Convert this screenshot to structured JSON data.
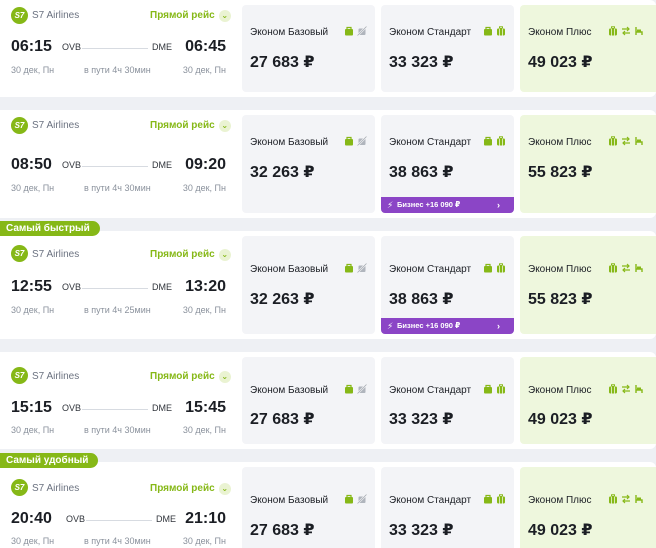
{
  "airline": "S7 Airlines",
  "logo_text": "S7",
  "direct_label": "Прямой рейс",
  "fares": {
    "basic": "Эконом Базовый",
    "standard": "Эконом Стандарт",
    "plus": "Эконом Плюс"
  },
  "business_upgrade": "Бизнес +16 090 ₽",
  "badges": {
    "fastest": "Самый быстрый",
    "convenient": "Самый удобный"
  },
  "flights": [
    {
      "dep_time": "06:15",
      "arr_time": "06:45",
      "from": "OVB",
      "to": "DME",
      "dep_date": "30 дек, Пн",
      "arr_date": "30 дек, Пн",
      "duration": "в пути 4ч 30мин",
      "price_basic": "27 683 ₽",
      "price_standard": "33 323 ₽",
      "price_plus": "49 023 ₽"
    },
    {
      "dep_time": "08:50",
      "arr_time": "09:20",
      "from": "OVB",
      "to": "DME",
      "dep_date": "30 дек, Пн",
      "arr_date": "30 дек, Пн",
      "duration": "в пути 4ч 30мин",
      "price_basic": "32 263 ₽",
      "price_standard": "38 863 ₽",
      "price_plus": "55 823 ₽"
    },
    {
      "dep_time": "12:55",
      "arr_time": "13:20",
      "from": "OVB",
      "to": "DME",
      "dep_date": "30 дек, Пн",
      "arr_date": "30 дек, Пн",
      "duration": "в пути 4ч 25мин",
      "price_basic": "32 263 ₽",
      "price_standard": "38 863 ₽",
      "price_plus": "55 823 ₽"
    },
    {
      "dep_time": "15:15",
      "arr_time": "15:45",
      "from": "OVB",
      "to": "DME",
      "dep_date": "30 дек, Пн",
      "arr_date": "30 дек, Пн",
      "duration": "в пути 4ч 30мин",
      "price_basic": "27 683 ₽",
      "price_standard": "33 323 ₽",
      "price_plus": "49 023 ₽"
    },
    {
      "dep_time": "20:40",
      "arr_time": "21:10",
      "from": "OVB",
      "to": "DME",
      "dep_date": "30 дек, Пн",
      "arr_date": "30 дек, Пн",
      "duration": "в пути 4ч 30мин",
      "price_basic": "27 683 ₽",
      "price_standard": "33 323 ₽",
      "price_plus": "49 023 ₽"
    }
  ],
  "colors": {
    "accent_green": "#86b817",
    "business_purple": "#8b45c6",
    "plus_bg": "#eef7dd",
    "fare_bg": "#f3f4f7"
  }
}
